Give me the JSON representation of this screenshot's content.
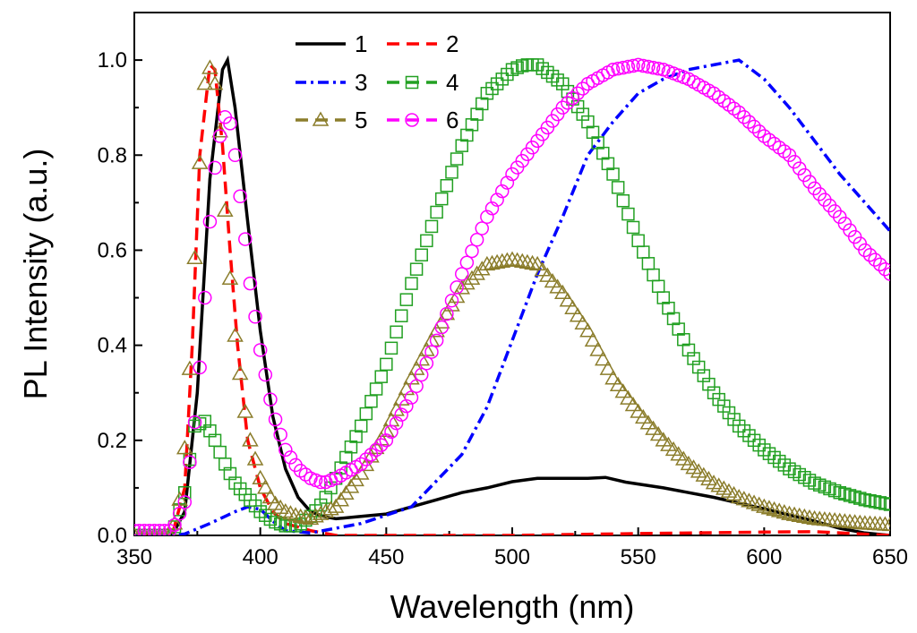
{
  "chart_data": {
    "type": "line",
    "title": "",
    "xlabel": "Wavelength (nm)",
    "ylabel": "PL Intensity (a.u.)",
    "xlim": [
      350,
      650
    ],
    "ylim": [
      0.0,
      1.1
    ],
    "xticks": [
      350,
      400,
      450,
      500,
      550,
      600,
      650
    ],
    "xtick_labels": [
      "350",
      "400",
      "450",
      "500",
      "550",
      "600",
      "650"
    ],
    "yticks": [
      0.0,
      0.2,
      0.4,
      0.6,
      0.8,
      1.0
    ],
    "ytick_labels": [
      "0.0",
      "0.2",
      "0.4",
      "0.6",
      "0.8",
      "1.0"
    ],
    "grid": false,
    "legend_position": "top-center",
    "series": [
      {
        "name": "1",
        "color": "#000000",
        "style": "solid",
        "marker": "none",
        "points": [
          [
            350,
            0.0
          ],
          [
            365,
            0.0
          ],
          [
            370,
            0.05
          ],
          [
            375,
            0.3
          ],
          [
            380,
            0.75
          ],
          [
            385,
            0.98
          ],
          [
            387,
            1.0
          ],
          [
            390,
            0.9
          ],
          [
            395,
            0.66
          ],
          [
            400,
            0.43
          ],
          [
            405,
            0.25
          ],
          [
            410,
            0.14
          ],
          [
            415,
            0.08
          ],
          [
            420,
            0.05
          ],
          [
            425,
            0.04
          ],
          [
            430,
            0.035
          ],
          [
            440,
            0.04
          ],
          [
            450,
            0.045
          ],
          [
            460,
            0.06
          ],
          [
            470,
            0.075
          ],
          [
            480,
            0.09
          ],
          [
            490,
            0.1
          ],
          [
            500,
            0.113
          ],
          [
            510,
            0.12
          ],
          [
            520,
            0.12
          ],
          [
            530,
            0.12
          ],
          [
            537,
            0.122
          ],
          [
            545,
            0.112
          ],
          [
            560,
            0.1
          ],
          [
            580,
            0.08
          ],
          [
            600,
            0.056
          ],
          [
            620,
            0.03
          ],
          [
            630,
            0.015
          ],
          [
            640,
            0.005
          ],
          [
            650,
            0.0
          ]
        ]
      },
      {
        "name": "2",
        "color": "#ff0000",
        "style": "dashed",
        "marker": "none",
        "points": [
          [
            350,
            0.0
          ],
          [
            365,
            0.0
          ],
          [
            370,
            0.1
          ],
          [
            373,
            0.4
          ],
          [
            376,
            0.8
          ],
          [
            380,
            0.99
          ],
          [
            382,
            0.98
          ],
          [
            385,
            0.82
          ],
          [
            388,
            0.6
          ],
          [
            391,
            0.4
          ],
          [
            395,
            0.2
          ],
          [
            400,
            0.1
          ],
          [
            405,
            0.05
          ],
          [
            410,
            0.025
          ],
          [
            420,
            0.01
          ],
          [
            430,
            0.0
          ],
          [
            500,
            0.0
          ],
          [
            550,
            0.004
          ],
          [
            600,
            0.007
          ],
          [
            620,
            0.008
          ],
          [
            650,
            0.0
          ]
        ]
      },
      {
        "name": "3",
        "color": "#0000ff",
        "style": "dashdot",
        "marker": "none",
        "points": [
          [
            350,
            0.0
          ],
          [
            365,
            0.0
          ],
          [
            370,
            0.003
          ],
          [
            380,
            0.025
          ],
          [
            390,
            0.05
          ],
          [
            395,
            0.06
          ],
          [
            400,
            0.055
          ],
          [
            405,
            0.03
          ],
          [
            410,
            0.01
          ],
          [
            420,
            0.005
          ],
          [
            440,
            0.025
          ],
          [
            460,
            0.06
          ],
          [
            480,
            0.17
          ],
          [
            490,
            0.27
          ],
          [
            500,
            0.41
          ],
          [
            510,
            0.55
          ],
          [
            520,
            0.67
          ],
          [
            530,
            0.8
          ],
          [
            540,
            0.87
          ],
          [
            550,
            0.93
          ],
          [
            560,
            0.96
          ],
          [
            570,
            0.98
          ],
          [
            580,
            0.99
          ],
          [
            590,
            1.0
          ],
          [
            600,
            0.96
          ],
          [
            610,
            0.9
          ],
          [
            620,
            0.83
          ],
          [
            630,
            0.76
          ],
          [
            640,
            0.7
          ],
          [
            650,
            0.64
          ]
        ]
      },
      {
        "name": "4",
        "color": "#22a022",
        "style": "dashed",
        "marker": "square",
        "points": [
          [
            350,
            0.0
          ],
          [
            365,
            0.0
          ],
          [
            370,
            0.09
          ],
          [
            374,
            0.23
          ],
          [
            378,
            0.24
          ],
          [
            382,
            0.2
          ],
          [
            386,
            0.15
          ],
          [
            390,
            0.11
          ],
          [
            395,
            0.08
          ],
          [
            400,
            0.05
          ],
          [
            405,
            0.03
          ],
          [
            410,
            0.02
          ],
          [
            415,
            0.02
          ],
          [
            420,
            0.04
          ],
          [
            425,
            0.07
          ],
          [
            430,
            0.12
          ],
          [
            440,
            0.23
          ],
          [
            450,
            0.36
          ],
          [
            460,
            0.53
          ],
          [
            470,
            0.68
          ],
          [
            480,
            0.82
          ],
          [
            490,
            0.93
          ],
          [
            500,
            0.98
          ],
          [
            505,
            0.99
          ],
          [
            510,
            0.99
          ],
          [
            520,
            0.95
          ],
          [
            530,
            0.87
          ],
          [
            540,
            0.76
          ],
          [
            550,
            0.62
          ],
          [
            560,
            0.5
          ],
          [
            570,
            0.39
          ],
          [
            580,
            0.3
          ],
          [
            590,
            0.23
          ],
          [
            600,
            0.18
          ],
          [
            610,
            0.14
          ],
          [
            620,
            0.11
          ],
          [
            630,
            0.09
          ],
          [
            640,
            0.075
          ],
          [
            650,
            0.065
          ]
        ]
      },
      {
        "name": "5",
        "color": "#8b7d2b",
        "style": "dashed",
        "marker": "triangle",
        "points": [
          [
            350,
            0.0
          ],
          [
            365,
            0.0
          ],
          [
            369,
            0.1
          ],
          [
            372,
            0.35
          ],
          [
            375,
            0.7
          ],
          [
            378,
            0.95
          ],
          [
            381,
            1.0
          ],
          [
            384,
            0.85
          ],
          [
            387,
            0.6
          ],
          [
            390,
            0.42
          ],
          [
            395,
            0.22
          ],
          [
            400,
            0.12
          ],
          [
            405,
            0.07
          ],
          [
            410,
            0.05
          ],
          [
            415,
            0.04
          ],
          [
            420,
            0.035
          ],
          [
            430,
            0.06
          ],
          [
            440,
            0.13
          ],
          [
            450,
            0.22
          ],
          [
            460,
            0.33
          ],
          [
            470,
            0.43
          ],
          [
            480,
            0.52
          ],
          [
            490,
            0.57
          ],
          [
            500,
            0.58
          ],
          [
            510,
            0.57
          ],
          [
            520,
            0.51
          ],
          [
            530,
            0.43
          ],
          [
            540,
            0.33
          ],
          [
            550,
            0.26
          ],
          [
            560,
            0.2
          ],
          [
            570,
            0.15
          ],
          [
            580,
            0.11
          ],
          [
            590,
            0.08
          ],
          [
            600,
            0.06
          ],
          [
            610,
            0.045
          ],
          [
            620,
            0.035
          ],
          [
            630,
            0.03
          ],
          [
            640,
            0.025
          ],
          [
            650,
            0.022
          ]
        ]
      },
      {
        "name": "6",
        "color": "#ff00ff",
        "style": "dashed",
        "marker": "circle",
        "points": [
          [
            350,
            0.01
          ],
          [
            365,
            0.01
          ],
          [
            370,
            0.07
          ],
          [
            375,
            0.28
          ],
          [
            378,
            0.5
          ],
          [
            381,
            0.74
          ],
          [
            384,
            0.84
          ],
          [
            387,
            0.9
          ],
          [
            390,
            0.8
          ],
          [
            393,
            0.67
          ],
          [
            396,
            0.53
          ],
          [
            400,
            0.39
          ],
          [
            405,
            0.26
          ],
          [
            410,
            0.18
          ],
          [
            415,
            0.14
          ],
          [
            420,
            0.12
          ],
          [
            425,
            0.11
          ],
          [
            430,
            0.12
          ],
          [
            440,
            0.15
          ],
          [
            450,
            0.2
          ],
          [
            460,
            0.29
          ],
          [
            470,
            0.41
          ],
          [
            480,
            0.55
          ],
          [
            490,
            0.67
          ],
          [
            500,
            0.76
          ],
          [
            510,
            0.83
          ],
          [
            520,
            0.9
          ],
          [
            530,
            0.95
          ],
          [
            540,
            0.98
          ],
          [
            550,
            0.99
          ],
          [
            560,
            0.98
          ],
          [
            570,
            0.96
          ],
          [
            580,
            0.93
          ],
          [
            590,
            0.89
          ],
          [
            600,
            0.84
          ],
          [
            610,
            0.8
          ],
          [
            620,
            0.73
          ],
          [
            630,
            0.67
          ],
          [
            640,
            0.6
          ],
          [
            650,
            0.55
          ]
        ]
      }
    ]
  }
}
